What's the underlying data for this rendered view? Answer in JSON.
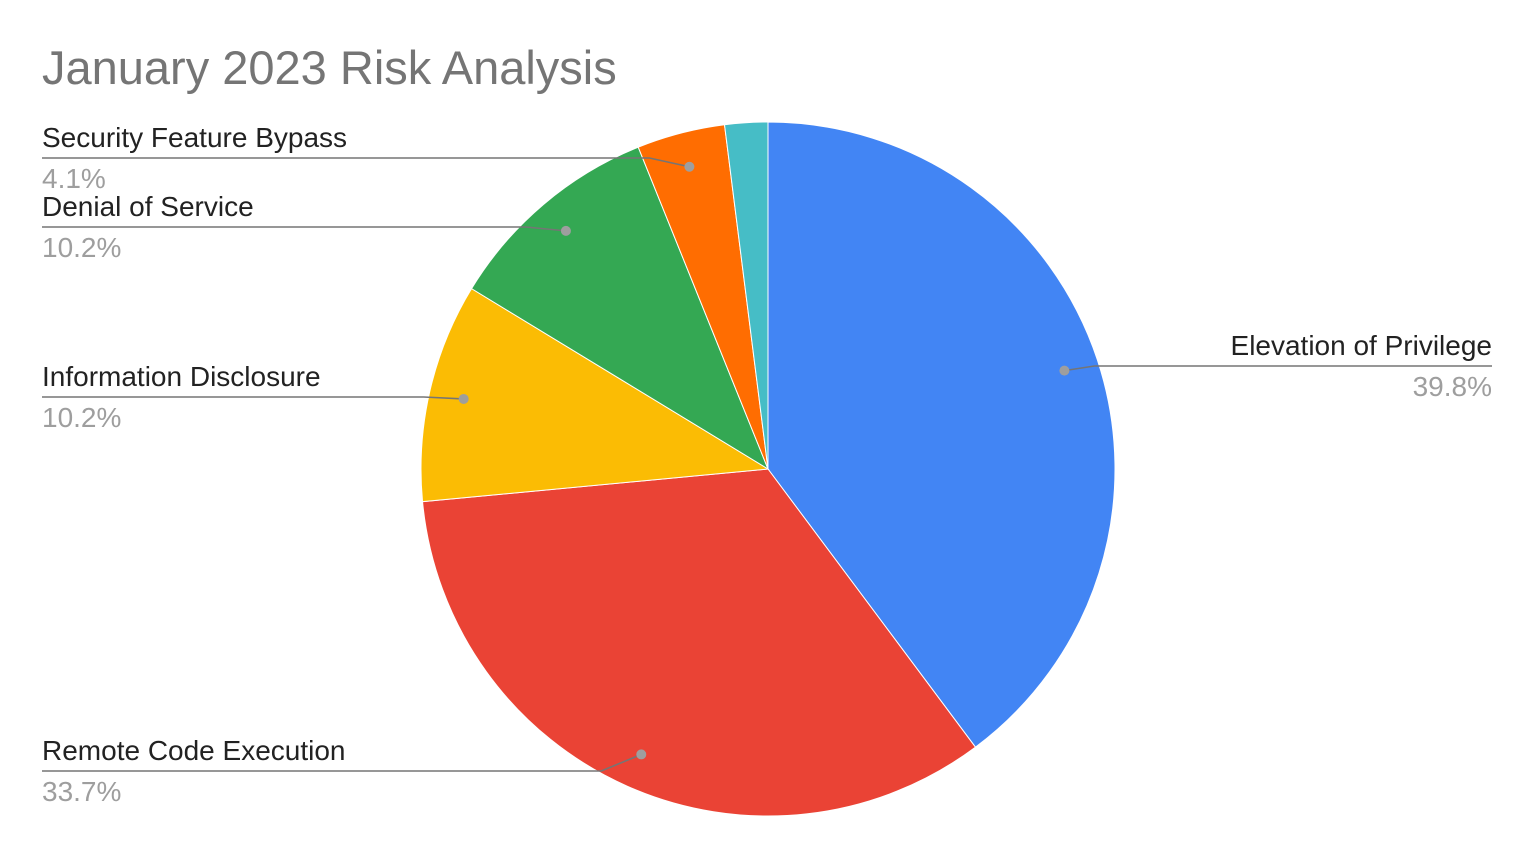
{
  "chart_data": {
    "type": "pie",
    "title": "January 2023 Risk Analysis",
    "slices": [
      {
        "name": "Elevation of Privilege",
        "value": 39.8,
        "label": "39.8%",
        "color": "#4285F4"
      },
      {
        "name": "Remote Code Execution",
        "value": 33.7,
        "label": "33.7%",
        "color": "#EA4335"
      },
      {
        "name": "Information Disclosure",
        "value": 10.2,
        "label": "10.2%",
        "color": "#FBBC04"
      },
      {
        "name": "Denial of Service",
        "value": 10.2,
        "label": "10.2%",
        "color": "#34A853"
      },
      {
        "name": "Security Feature Bypass",
        "value": 4.1,
        "label": "4.1%",
        "color": "#FF6D01"
      },
      {
        "name": "",
        "value": 2.0,
        "label": "",
        "color": "#46BDC6"
      }
    ],
    "start_angle_deg": 0,
    "direction": "clockwise",
    "legend": "none",
    "labels": "outside-with-leader-lines"
  }
}
